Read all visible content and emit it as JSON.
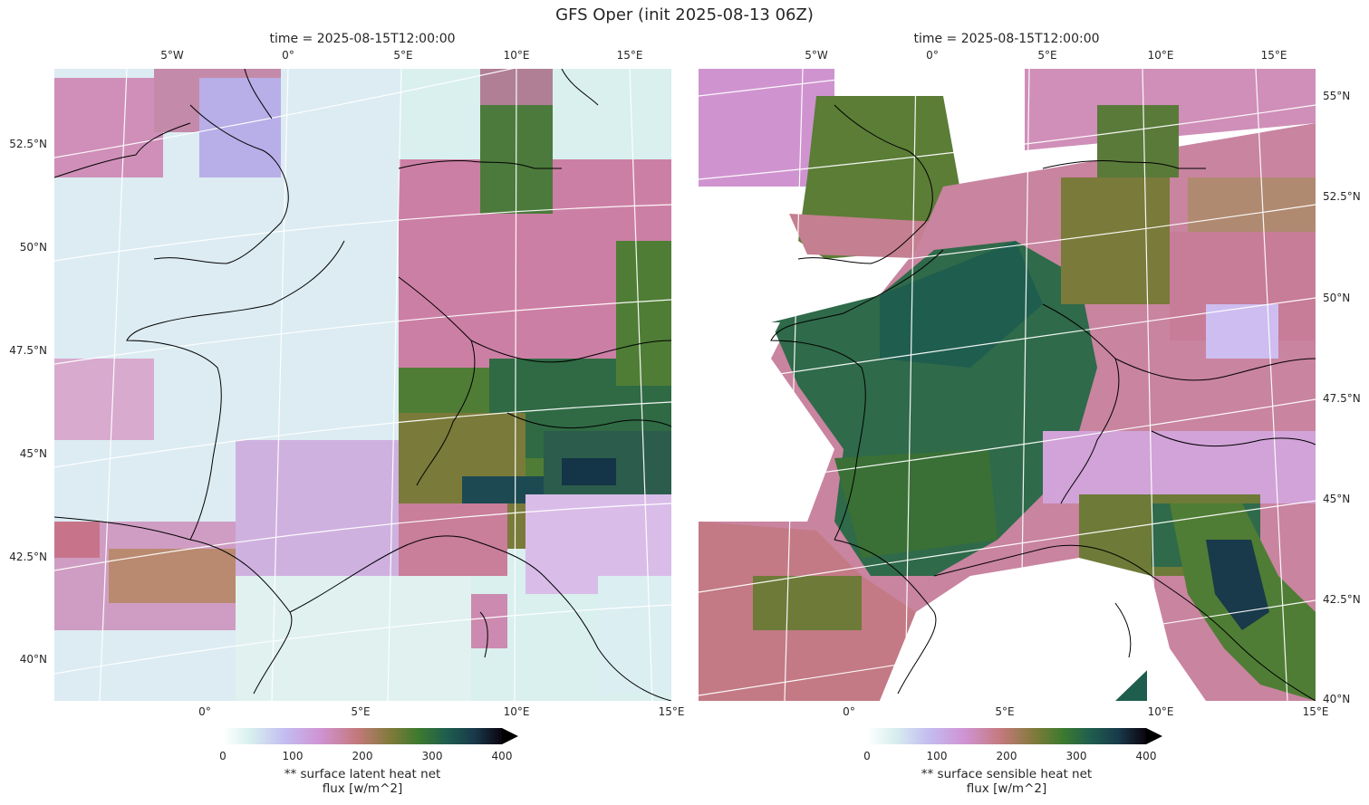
{
  "suptitle": "GFS Oper (init 2025-08-13 06Z)",
  "panels": [
    {
      "title": "time = 2025-08-15T12:00:00",
      "variable": "surface latent heat net flux",
      "colorbar": {
        "ticks": [
          "0",
          "100",
          "200",
          "300",
          "400"
        ],
        "label_line1": "** surface latent heat net",
        "label_line2": "flux [w/m^2]",
        "extend": "max"
      },
      "top_lon_ticks": [
        "5°W",
        "0°",
        "5°E",
        "10°E",
        "15°E"
      ],
      "bottom_lon_ticks": [
        "0°",
        "5°E",
        "10°E",
        "15°E"
      ],
      "left_lat_ticks": [
        "52.5°N",
        "50°N",
        "47.5°N",
        "45°N",
        "42.5°N",
        "40°N"
      ]
    },
    {
      "title": "time = 2025-08-15T12:00:00",
      "variable": "surface sensible heat net flux",
      "colorbar": {
        "ticks": [
          "0",
          "100",
          "200",
          "300",
          "400"
        ],
        "label_line1": "** surface sensible heat net",
        "label_line2": "flux [w/m^2]",
        "extend": "max"
      },
      "top_lon_ticks": [
        "5°W",
        "0°",
        "5°E",
        "10°E",
        "15°E"
      ],
      "bottom_lon_ticks": [
        "0°",
        "5°E",
        "10°E",
        "15°E"
      ],
      "right_lat_ticks": [
        "55°N",
        "52.5°N",
        "50°N",
        "47.5°N",
        "45°N",
        "42.5°N",
        "40°N"
      ]
    }
  ],
  "colormap": "cubehelix_r (white → lilac → pink → olive → dark green → black)",
  "colors": {
    "coastline": "#000000",
    "gridlines": "#ffffff"
  }
}
